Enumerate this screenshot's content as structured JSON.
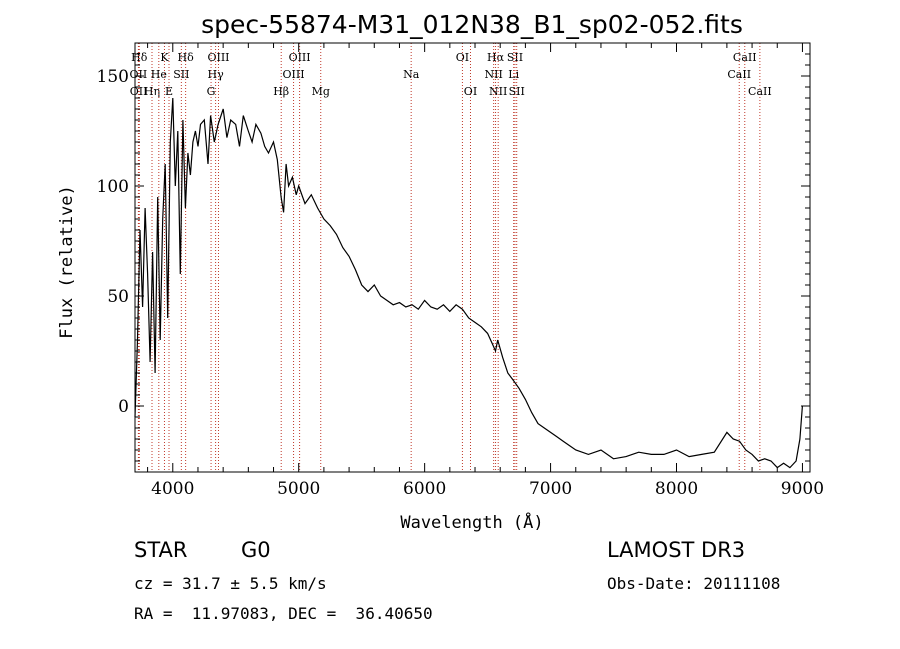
{
  "chart_data": {
    "type": "line",
    "title": "spec-55874-M31_012N38_B1_sp02-052.fits",
    "xlabel": "Wavelength (Å)",
    "ylabel": "Flux (relative)",
    "xlim": [
      3700,
      9060
    ],
    "ylim": [
      -30,
      165
    ],
    "xticks": [
      4000,
      5000,
      6000,
      7000,
      8000,
      9000
    ],
    "yticks": [
      0,
      50,
      100,
      150
    ],
    "series": [
      {
        "name": "flux",
        "x": [
          3700,
          3720,
          3740,
          3760,
          3780,
          3800,
          3820,
          3840,
          3860,
          3880,
          3900,
          3920,
          3940,
          3960,
          3980,
          4000,
          4020,
          4040,
          4060,
          4080,
          4100,
          4120,
          4140,
          4160,
          4180,
          4200,
          4220,
          4250,
          4280,
          4300,
          4330,
          4360,
          4400,
          4430,
          4460,
          4500,
          4530,
          4560,
          4600,
          4630,
          4660,
          4700,
          4730,
          4760,
          4800,
          4830,
          4860,
          4880,
          4900,
          4920,
          4950,
          4980,
          5000,
          5050,
          5100,
          5150,
          5200,
          5250,
          5300,
          5350,
          5400,
          5450,
          5500,
          5550,
          5600,
          5650,
          5700,
          5750,
          5800,
          5850,
          5900,
          5950,
          6000,
          6050,
          6100,
          6150,
          6200,
          6250,
          6300,
          6350,
          6400,
          6450,
          6500,
          6540,
          6563,
          6580,
          6620,
          6660,
          6700,
          6750,
          6800,
          6850,
          6900,
          6950,
          7000,
          7050,
          7100,
          7150,
          7200,
          7300,
          7400,
          7500,
          7600,
          7700,
          7800,
          7900,
          8000,
          8100,
          8200,
          8300,
          8400,
          8450,
          8500,
          8550,
          8600,
          8650,
          8700,
          8750,
          8800,
          8850,
          8900,
          8950,
          8980,
          9000
        ],
        "values": [
          -5,
          30,
          80,
          45,
          90,
          60,
          20,
          70,
          15,
          95,
          30,
          85,
          110,
          40,
          120,
          140,
          100,
          125,
          60,
          130,
          90,
          115,
          105,
          120,
          125,
          118,
          128,
          130,
          110,
          132,
          120,
          128,
          135,
          122,
          130,
          128,
          118,
          132,
          125,
          120,
          128,
          124,
          118,
          115,
          120,
          112,
          95,
          88,
          110,
          100,
          104,
          96,
          100,
          92,
          96,
          90,
          85,
          82,
          78,
          72,
          68,
          62,
          55,
          52,
          55,
          50,
          48,
          46,
          47,
          45,
          46,
          44,
          48,
          45,
          44,
          46,
          43,
          46,
          44,
          40,
          38,
          36,
          33,
          28,
          25,
          30,
          22,
          15,
          12,
          8,
          3,
          -3,
          -8,
          -10,
          -12,
          -14,
          -16,
          -18,
          -20,
          -22,
          -20,
          -24,
          -23,
          -21,
          -22,
          -22,
          -20,
          -23,
          -22,
          -21,
          -12,
          -15,
          -16,
          -20,
          -22,
          -25,
          -24,
          -25,
          -28,
          -26,
          -28,
          -25,
          -15,
          0
        ]
      }
    ],
    "emission_lines": [
      {
        "name": "Hδ",
        "wave": 3734,
        "row": 0
      },
      {
        "name": "OII",
        "wave": 3727,
        "row": 1
      },
      {
        "name": "OII",
        "wave": 3729,
        "row": 2
      },
      {
        "name": "Hη",
        "wave": 3835,
        "row": 2
      },
      {
        "name": "K",
        "wave": 3934,
        "row": 0
      },
      {
        "name": "He",
        "wave": 3889,
        "row": 1
      },
      {
        "name": "E",
        "wave": 3970,
        "row": 2
      },
      {
        "name": "SII",
        "wave": 4068,
        "row": 1
      },
      {
        "name": "Hδ",
        "wave": 4102,
        "row": 0
      },
      {
        "name": "OIII",
        "wave": 4363,
        "row": 0
      },
      {
        "name": "Hγ",
        "wave": 4340,
        "row": 1
      },
      {
        "name": "G",
        "wave": 4304,
        "row": 2
      },
      {
        "name": "Hβ",
        "wave": 4861,
        "row": 2
      },
      {
        "name": "OIII",
        "wave": 5007,
        "row": 0
      },
      {
        "name": "OIII",
        "wave": 4959,
        "row": 1
      },
      {
        "name": "Mg",
        "wave": 5175,
        "row": 2
      },
      {
        "name": "Na",
        "wave": 5893,
        "row": 1
      },
      {
        "name": "OI",
        "wave": 6300,
        "row": 0
      },
      {
        "name": "OI",
        "wave": 6364,
        "row": 2
      },
      {
        "name": "Hα",
        "wave": 6563,
        "row": 0
      },
      {
        "name": "NII",
        "wave": 6548,
        "row": 1
      },
      {
        "name": "NII",
        "wave": 6584,
        "row": 2
      },
      {
        "name": "SII",
        "wave": 6717,
        "row": 0
      },
      {
        "name": "Li",
        "wave": 6707,
        "row": 1
      },
      {
        "name": "SII",
        "wave": 6731,
        "row": 2
      },
      {
        "name": "CaII",
        "wave": 8542,
        "row": 0
      },
      {
        "name": "CaII",
        "wave": 8498,
        "row": 1
      },
      {
        "name": "CaII",
        "wave": 8662,
        "row": 2
      }
    ],
    "line_color": "#000000",
    "marker_color": "#c0392b"
  },
  "info": {
    "class": "STAR",
    "subclass": "G0",
    "survey": "LAMOST DR3",
    "cz": "cz = 31.7 ± 5.5 km/s",
    "obs_date": "Obs-Date: 20111108",
    "coords": "RA =  11.97083, DEC =  36.40650"
  }
}
